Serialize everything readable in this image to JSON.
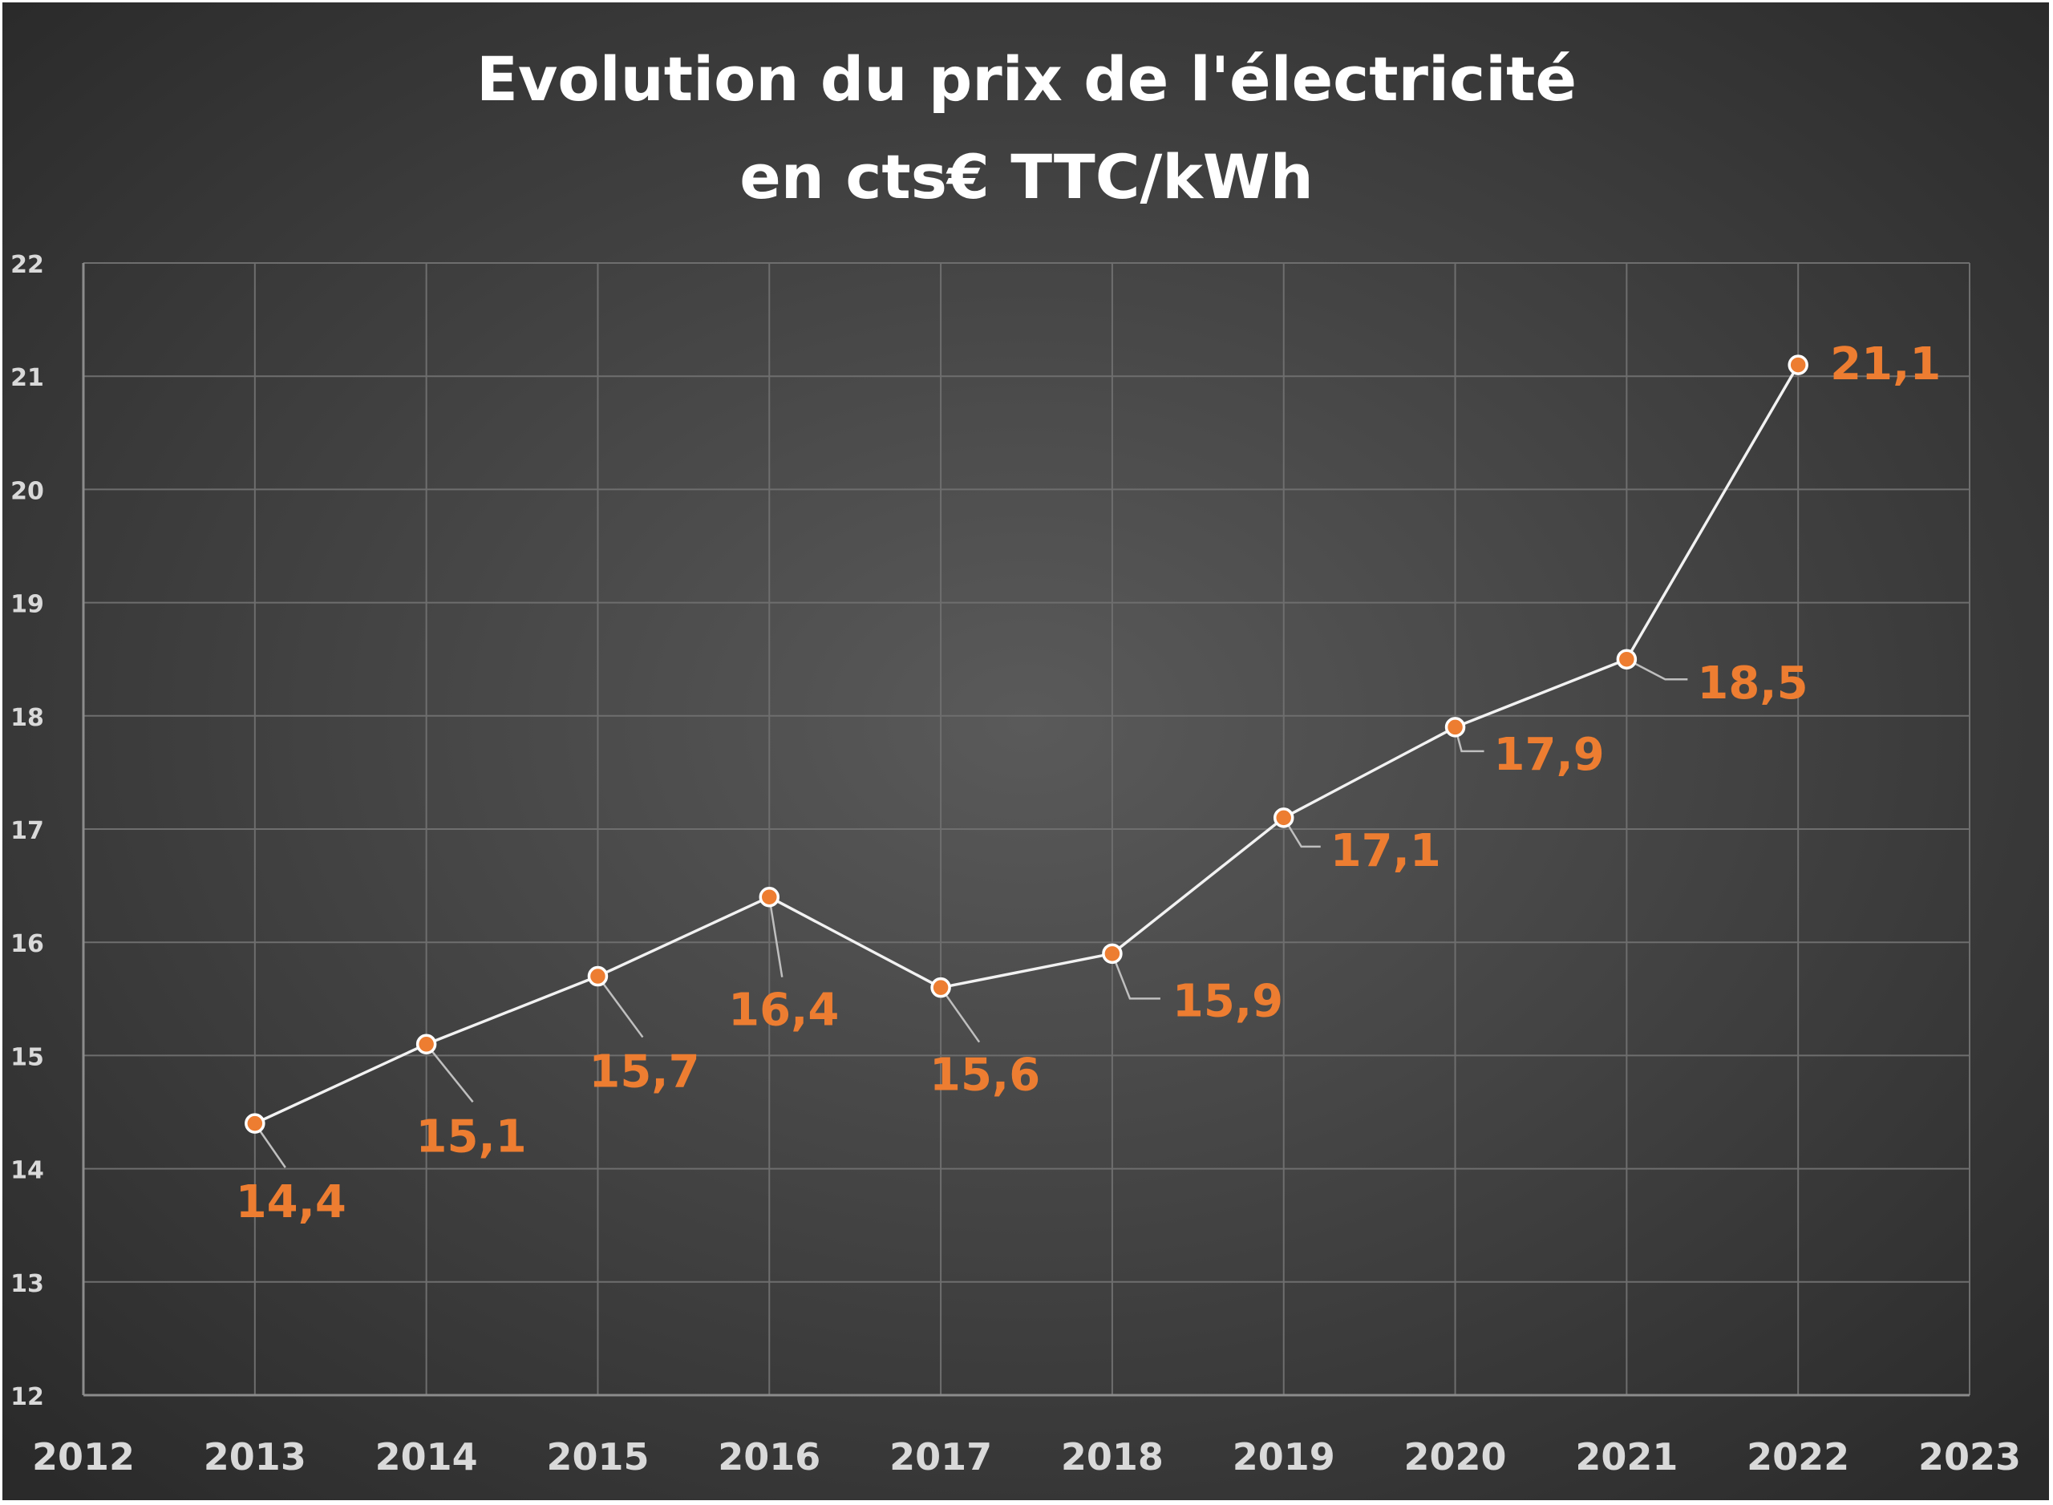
{
  "chart_data": {
    "type": "line",
    "title": [
      "Evolution du prix de l'électricité",
      "en cts€ TTC/kWh"
    ],
    "xlabel": "",
    "ylabel": "",
    "xlim": [
      2012,
      2023
    ],
    "ylim": [
      12,
      22
    ],
    "x_ticks": [
      "2012",
      "2013",
      "2014",
      "2015",
      "2016",
      "2017",
      "2018",
      "2019",
      "2020",
      "2021",
      "2022",
      "2023"
    ],
    "y_ticks": [
      "12",
      "13",
      "14",
      "15",
      "16",
      "17",
      "18",
      "19",
      "20",
      "21",
      "22"
    ],
    "grid": true,
    "legend": "none",
    "series": [
      {
        "x": [
          2013,
          2014,
          2015,
          2016,
          2017,
          2018,
          2019,
          2020,
          2021,
          2022
        ],
        "values": [
          14.4,
          15.1,
          15.7,
          16.4,
          15.6,
          15.9,
          17.1,
          17.9,
          18.5,
          21.1
        ],
        "labels": [
          "14,4",
          "15,1",
          "15,7",
          "16,4",
          "15,6",
          "15,9",
          "17,1",
          "17,9",
          "18,5",
          "21,1"
        ]
      }
    ],
    "colors": {
      "background_center": "#5a5a5a",
      "background_edge": "#2a2a2a",
      "line": "#f2f2f2",
      "marker": "#ed7d31",
      "label": "#ed7d31",
      "grid": "#6e6e6e",
      "leader": "#bfbfbf"
    }
  }
}
